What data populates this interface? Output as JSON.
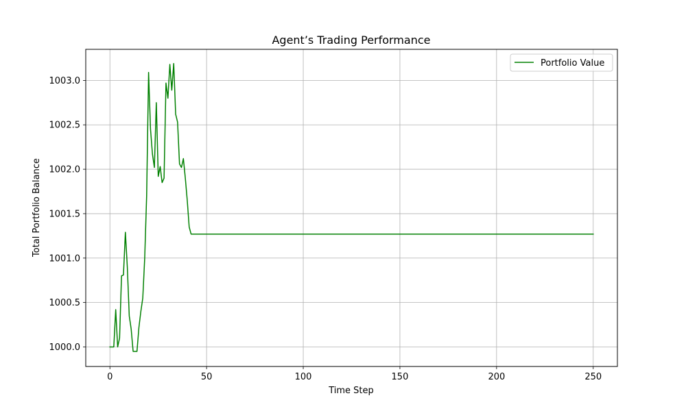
{
  "chart_data": {
    "type": "line",
    "title": "Agent’s Trading Performance",
    "xlabel": "Time Step",
    "ylabel": "Total Portfolio Balance",
    "xlim": [
      -12.5,
      262.5
    ],
    "ylim": [
      999.78,
      1003.35
    ],
    "xticks": [
      0,
      50,
      100,
      150,
      200,
      250
    ],
    "xtick_labels": [
      "0",
      "50",
      "100",
      "150",
      "200",
      "250"
    ],
    "yticks": [
      1000.0,
      1000.5,
      1001.0,
      1001.5,
      1002.0,
      1002.5,
      1003.0
    ],
    "ytick_labels": [
      "1000.0",
      "1000.5",
      "1001.0",
      "1001.5",
      "1002.0",
      "1002.5",
      "1003.0"
    ],
    "grid": true,
    "legend_position": "upper right",
    "series": [
      {
        "name": "Portfolio Value",
        "color": "#008000",
        "x": [
          0,
          1,
          2,
          3,
          4,
          5,
          6,
          7,
          8,
          9,
          10,
          11,
          12,
          13,
          14,
          15,
          16,
          17,
          18,
          19,
          20,
          21,
          22,
          23,
          24,
          25,
          26,
          27,
          28,
          29,
          30,
          31,
          32,
          33,
          34,
          35,
          36,
          37,
          38,
          39,
          40,
          41,
          42,
          250
        ],
        "y": [
          1000.0,
          1000.0,
          1000.0,
          1000.42,
          1000.0,
          1000.1,
          1000.8,
          1000.81,
          1001.29,
          1000.9,
          1000.35,
          1000.2,
          999.95,
          999.95,
          999.95,
          1000.22,
          1000.4,
          1000.55,
          1001.0,
          1001.7,
          1003.09,
          1002.45,
          1002.17,
          1002.02,
          1002.75,
          1001.92,
          1002.03,
          1001.85,
          1001.9,
          1002.97,
          1002.8,
          1003.18,
          1002.89,
          1003.19,
          1002.62,
          1002.53,
          1002.06,
          1002.02,
          1002.12,
          1001.9,
          1001.65,
          1001.35,
          1001.27,
          1001.27
        ]
      }
    ]
  }
}
